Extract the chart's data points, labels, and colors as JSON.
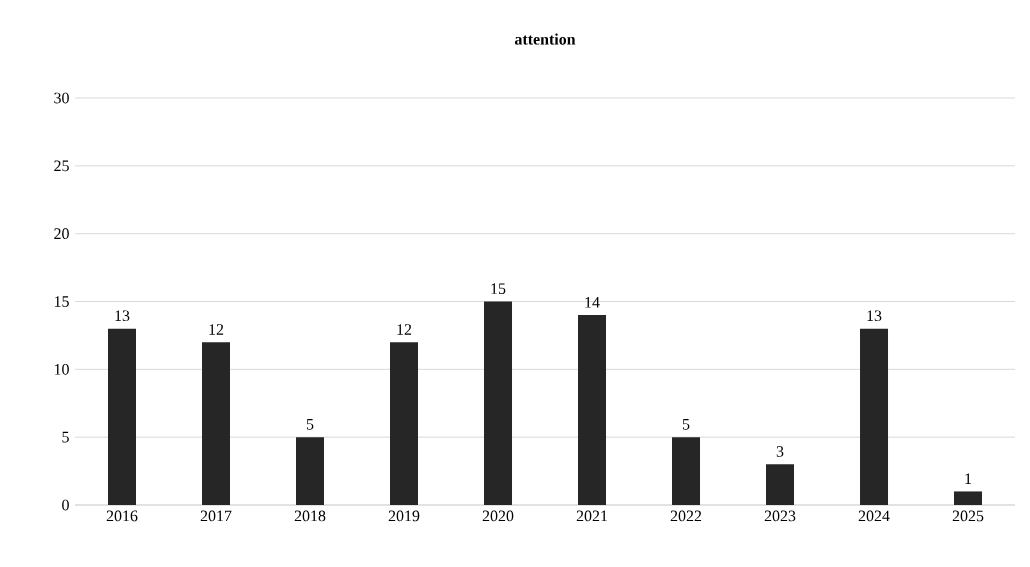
{
  "chart_data": {
    "type": "bar",
    "title": "attention",
    "categories": [
      "2016",
      "2017",
      "2018",
      "2019",
      "2020",
      "2021",
      "2022",
      "2023",
      "2024",
      "2025"
    ],
    "values": [
      13,
      12,
      5,
      12,
      15,
      14,
      5,
      3,
      13,
      1
    ],
    "color": "#262626",
    "ylim": [
      0,
      30
    ],
    "yticks": [
      0,
      5,
      10,
      15,
      20,
      25,
      30
    ],
    "grid": "y",
    "data_labels": true
  }
}
